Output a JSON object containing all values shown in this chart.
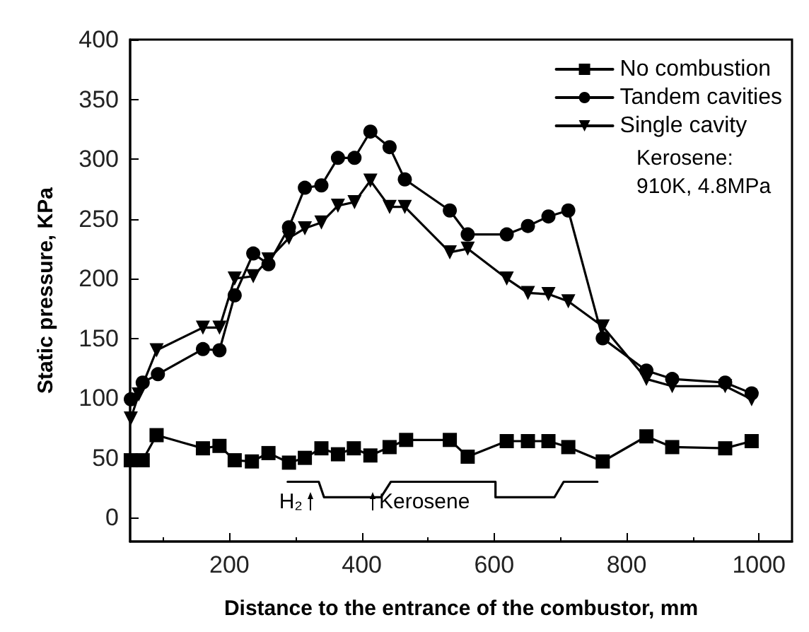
{
  "chart_data": {
    "type": "line",
    "xlabel": "Distance to the entrance of the combustor, mm",
    "ylabel": "Static pressure, KPa",
    "xlim": [
      50,
      1050
    ],
    "xticks": [
      200,
      400,
      600,
      800,
      1000
    ],
    "ylim": [
      -20,
      400
    ],
    "yticks": [
      0,
      50,
      100,
      150,
      200,
      250,
      300,
      350,
      400
    ],
    "legend": "top right",
    "grid": false,
    "line_style": "solid",
    "series": [
      {
        "name": "No combustion",
        "color": "#000000",
        "marker": "square",
        "x": [
          51,
          69,
          90,
          160,
          185,
          208,
          234,
          259,
          290,
          314,
          339,
          364,
          388,
          413,
          442,
          467,
          533,
          560,
          619,
          651,
          682,
          712,
          764,
          830,
          869,
          949,
          989
        ],
        "values": [
          48,
          48,
          69,
          58,
          60,
          48,
          47,
          54,
          46,
          50,
          58,
          53,
          58,
          52,
          59,
          65,
          65,
          51,
          64,
          64,
          64,
          59,
          47,
          68,
          59,
          58,
          64
        ]
      },
      {
        "name": "Tandem cavities",
        "color": "#000000",
        "marker": "circle",
        "x": [
          51,
          69,
          92,
          160,
          185,
          208,
          236,
          259,
          290,
          314,
          339,
          364,
          389,
          413,
          442,
          465,
          533,
          560,
          619,
          651,
          682,
          712,
          764,
          830,
          869,
          949,
          989
        ],
        "values": [
          99,
          113,
          120,
          141,
          140,
          186,
          221,
          212,
          243,
          276,
          278,
          301,
          301,
          323,
          310,
          283,
          257,
          237,
          237,
          244,
          252,
          257,
          150,
          123,
          116,
          113,
          104
        ]
      },
      {
        "name": "Single cavity",
        "color": "#000000",
        "marker": "triangle",
        "x": [
          51,
          63,
          90,
          160,
          185,
          208,
          236,
          259,
          290,
          314,
          339,
          364,
          389,
          413,
          442,
          465,
          533,
          560,
          619,
          651,
          682,
          712,
          764,
          830,
          869,
          949,
          989
        ],
        "values": [
          83,
          103,
          140,
          159,
          159,
          200,
          202,
          216,
          234,
          242,
          247,
          261,
          264,
          282,
          260,
          260,
          222,
          225,
          200,
          188,
          187,
          181,
          160,
          116,
          110,
          110,
          99
        ]
      },
      {
        "type": "line",
        "color": "#000000",
        "marker": "none",
        "x": [
          288,
          335,
          343,
          429,
          444,
          602,
          602,
          691,
          705,
          756
        ],
        "values": [
          30,
          30,
          17,
          17,
          30,
          30,
          17,
          17,
          30,
          30
        ]
      }
    ],
    "annotations": [
      "H₂",
      "Kerosene",
      "Kerosene:\n910K, 4.8MPa"
    ]
  }
}
